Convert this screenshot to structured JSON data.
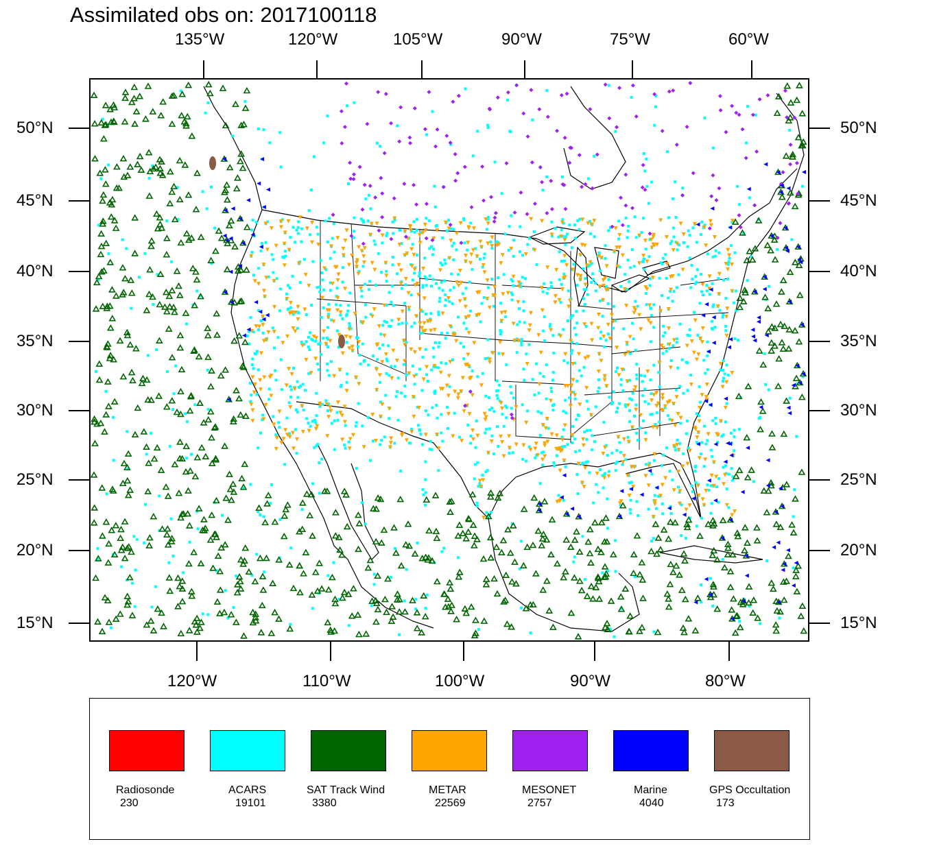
{
  "title": "Assimilated obs on: 2017100118",
  "top_axis_labels": [
    "135°W",
    "120°W",
    "105°W",
    "90°W",
    "75°W",
    "60°W"
  ],
  "bottom_axis_labels": [
    "120°W",
    "110°W",
    "100°W",
    "90°W",
    "80°W"
  ],
  "lat_labels": [
    "50°N",
    "45°N",
    "40°N",
    "35°N",
    "30°N",
    "25°N",
    "20°N",
    "15°N"
  ],
  "legend": [
    {
      "name": "Radiosonde",
      "count": "230",
      "color": "#ff0000"
    },
    {
      "name": "ACARS",
      "count": "19101",
      "color": "#00ffff"
    },
    {
      "name": "SAT Track Wind",
      "count": "3380",
      "color": "#006400"
    },
    {
      "name": "METAR",
      "count": "22569",
      "color": "#ffa500"
    },
    {
      "name": "MESONET",
      "count": "2757",
      "color": "#a020f0"
    },
    {
      "name": "Marine",
      "count": "4040",
      "color": "#0000ff"
    },
    {
      "name": "GPS Occultation",
      "count": "173",
      "color": "#8b5a44"
    }
  ],
  "chart_data": {
    "type": "scatter",
    "lon_range": [
      -128,
      -74
    ],
    "lat_range": [
      14,
      53
    ],
    "series": [
      {
        "name": "Radiosonde",
        "count": 230,
        "color": "#ff0000",
        "marker": "dot"
      },
      {
        "name": "ACARS",
        "count": 19101,
        "color": "#00ffff",
        "marker": "square"
      },
      {
        "name": "SAT Track Wind",
        "count": 3380,
        "color": "#006400",
        "marker": "triangle"
      },
      {
        "name": "METAR",
        "count": 22569,
        "color": "#ffa500",
        "marker": "triangle-down"
      },
      {
        "name": "MESONET",
        "count": 2757,
        "color": "#a020f0",
        "marker": "diamond"
      },
      {
        "name": "Marine",
        "count": 4040,
        "color": "#0000ff",
        "marker": "triangle-left"
      },
      {
        "name": "GPS Occultation",
        "count": 173,
        "color": "#8b5a44",
        "marker": "blob"
      }
    ]
  }
}
